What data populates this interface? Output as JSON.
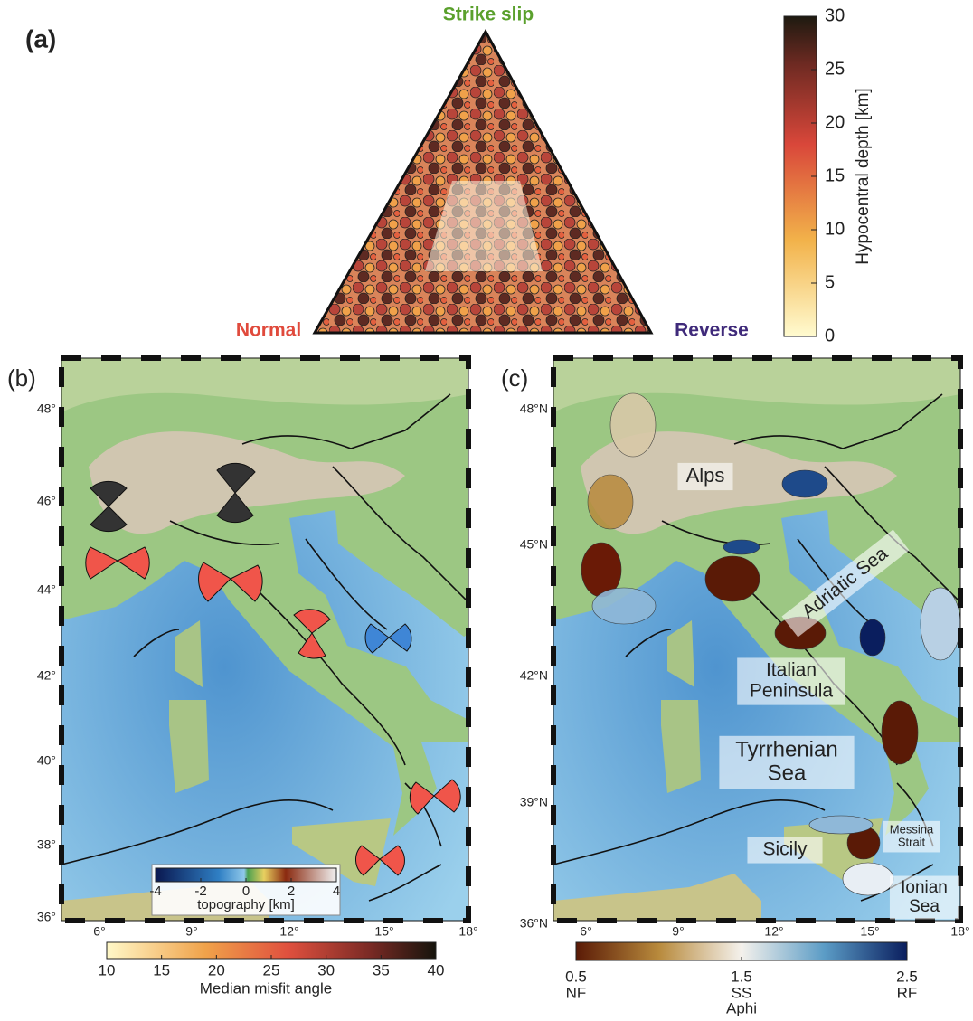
{
  "panel_a": {
    "label": "(a)",
    "vertices": {
      "top": "Strike slip",
      "left": "Normal",
      "right": "Reverse"
    },
    "colorbar": {
      "title": "Hypocentral depth [km]",
      "range": [
        0,
        30
      ],
      "ticks": [
        0,
        5,
        10,
        15,
        20,
        25,
        30
      ]
    }
  },
  "panel_b": {
    "label": "(b)",
    "lat_ticks": [
      "48°",
      "46°",
      "44°",
      "42°",
      "40°",
      "38°",
      "36°"
    ],
    "lon_ticks": [
      "6°",
      "9°",
      "12°",
      "15°",
      "18°"
    ],
    "topography": {
      "title": "topography [km]",
      "range": [
        -4,
        4
      ],
      "ticks": [
        -4,
        -2,
        0,
        2,
        4
      ]
    },
    "colorbar": {
      "title": "Median misfit angle",
      "range": [
        10,
        40
      ],
      "ticks": [
        10,
        15,
        20,
        25,
        30,
        35,
        40
      ]
    }
  },
  "panel_c": {
    "label": "(c)",
    "lat_ticks": [
      "48°N",
      "45°N",
      "42°N",
      "39°N",
      "36°N"
    ],
    "lon_ticks": [
      "6°",
      "9°",
      "12°",
      "15°",
      "18°"
    ],
    "places": [
      [
        "Alps"
      ],
      [
        "Adriatic Sea"
      ],
      [
        "Italian",
        "Peninsula"
      ],
      [
        "Tyrrhenian",
        "Sea"
      ],
      [
        "Sicily"
      ],
      [
        "Messina",
        "Strait"
      ],
      [
        "Ionian",
        "Sea"
      ]
    ],
    "colorbar": {
      "title": "Aphi",
      "range": [
        0.5,
        2.5
      ],
      "ticks": [
        0.5,
        1.5,
        2.5
      ],
      "tick_names": [
        "NF",
        "SS",
        "RF"
      ]
    }
  }
}
